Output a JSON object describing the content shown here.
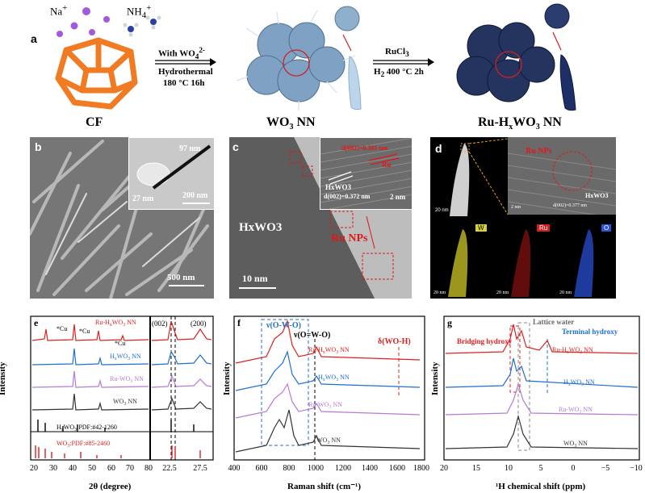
{
  "schematic": {
    "panel_letter": "a",
    "ions": {
      "na": "Na",
      "nh4": "NH"
    },
    "step1": {
      "top": "With WO",
      "line2": "Hydrothermal",
      "line3": "180 °C  16h"
    },
    "step2": {
      "top": "RuCl",
      "line2": "H",
      "line2b": "400 °C 2h"
    },
    "labels": {
      "cf": "CF",
      "wo3": "WO",
      "ruhxwo3_a": "Ru-H",
      "ruhxwo3_b": "WO",
      "nn": "NN"
    }
  },
  "sem": {
    "letter": "b",
    "tem_top": "97 nm",
    "tem_bottom": "27 nm",
    "inset_scale": "200 nm",
    "scale": "500 nm"
  },
  "hrtem": {
    "letter": "c",
    "d1": "d(002)=0.385 nm",
    "ru": "Ru",
    "hxwo3_small": "HxWO3",
    "d2": "d(002)=0.372 nm",
    "inset_scale": "2 nm",
    "main_label": "HxWO3",
    "ru_nps": "Ru NPs",
    "scale": "10 nm"
  },
  "haadf": {
    "letter": "d",
    "ru_nps": "Ru NPs",
    "hxwo3": "HxWO3",
    "d": "d(002)=0.377 nm",
    "scale_main": "20 nm",
    "scale_zoom": "2 nm",
    "maps": [
      {
        "element": "W",
        "color": "#d9d233",
        "scale": "20 nm"
      },
      {
        "element": "Ru",
        "color": "#d12020",
        "scale": "20 nm"
      },
      {
        "element": "O",
        "color": "#2b55d8",
        "scale": "20 nm"
      }
    ]
  },
  "xrd": {
    "letter": "e",
    "xlabel": "2θ (degree)",
    "ylabel": "Intensity",
    "ticks_left": [
      "20",
      "30",
      "40",
      "50",
      "60",
      "70",
      "80"
    ],
    "ticks_right": [
      "22.5",
      "27.5"
    ],
    "series": [
      {
        "name": "Ru-HxWO3 NN",
        "color": "#e02020"
      },
      {
        "name": "HxWO3 NN",
        "color": "#1f6fd1"
      },
      {
        "name": "Ru-WO3 NN",
        "color": "#b47ad6"
      },
      {
        "name": "WO3 NN",
        "color": "#333333"
      }
    ],
    "cu": [
      "*Cu",
      "*Cu",
      "*Cu"
    ],
    "ref1": "HxWO3:PDF:#42-1260",
    "ref2": "WO3:PDF:#85-2460",
    "hkl": [
      "(002)",
      "(200)"
    ]
  },
  "raman": {
    "letter": "f",
    "xlabel": "Raman shift (cm⁻¹)",
    "ylabel": "Intensity",
    "ticks": [
      "400",
      "600",
      "800",
      "1000",
      "1200",
      "1400",
      "1600",
      "1800"
    ],
    "modes": [
      "ν(O-W-O)",
      "ν(O=W-O)",
      "δ(WO-H)"
    ],
    "series": [
      {
        "name": "Ru-HxWO3 NN",
        "color": "#e02020"
      },
      {
        "name": "HxWO3 NN",
        "color": "#1f6fd1"
      },
      {
        "name": "Ru-WO3 NN",
        "color": "#b47ad6"
      },
      {
        "name": "WO3 NN",
        "color": "#333333"
      }
    ]
  },
  "nmr": {
    "letter": "g",
    "xlabel": "¹H chemical shift (ppm)",
    "ylabel": "Intensity",
    "ticks": [
      "20",
      "15",
      "10",
      "5",
      "0",
      "−5",
      "−10"
    ],
    "annots": [
      "Lattice water",
      "Bridging hydroxy",
      "Terminal hydroxy"
    ],
    "series": [
      {
        "name": "Ru-HxWO3 NN",
        "color": "#e02020"
      },
      {
        "name": "HxWO3 NN",
        "color": "#1f6fd1"
      },
      {
        "name": "Ru-WO3 NN",
        "color": "#b47ad6"
      },
      {
        "name": "WO3 NN",
        "color": "#333333"
      }
    ]
  }
}
